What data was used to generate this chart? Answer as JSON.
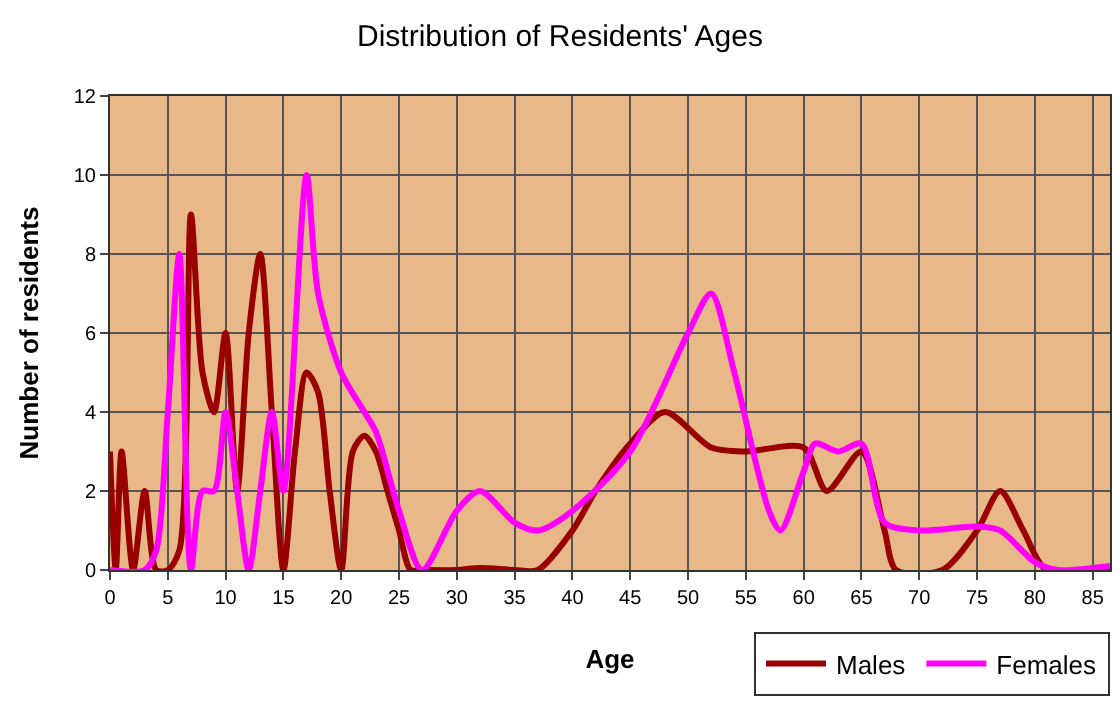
{
  "chart_data": {
    "type": "line",
    "title": "Distribution of Residents' Ages",
    "xlabel": "Age",
    "ylabel": "Number of residents",
    "xlim": [
      0,
      86.5
    ],
    "xticks": [
      0,
      5,
      10,
      15,
      20,
      25,
      30,
      35,
      40,
      45,
      50,
      55,
      60,
      65,
      70,
      75,
      80,
      85
    ],
    "ylim": [
      0,
      12
    ],
    "yticks": [
      0,
      2,
      4,
      6,
      8,
      10,
      12
    ],
    "grid": true,
    "legend": "bottom right",
    "marker": "none",
    "line_style": "solid",
    "series": [
      {
        "name": "Males",
        "color": "#990000",
        "x": [
          0,
          0.5,
          1,
          2,
          3,
          4,
          5,
          6,
          7,
          8,
          9,
          10,
          11,
          12,
          13,
          14,
          15,
          16,
          17,
          18,
          19,
          20,
          21,
          22,
          23,
          24,
          25,
          26,
          27,
          30,
          32,
          35,
          37,
          40,
          42,
          45,
          48,
          52,
          55,
          60,
          62,
          65,
          67,
          68,
          72,
          75,
          77,
          79,
          81,
          86.5
        ],
        "values": [
          3,
          0,
          3,
          0,
          2,
          0,
          0,
          0.5,
          9,
          5,
          4,
          6,
          2,
          6,
          8,
          4,
          0,
          3,
          5,
          4.5,
          2,
          0,
          3,
          3.4,
          3,
          2,
          1,
          0,
          0,
          0,
          0.05,
          0,
          0,
          1,
          2,
          3.2,
          4,
          3.1,
          3,
          3.1,
          2,
          3,
          1,
          0,
          0,
          1,
          2,
          1,
          0,
          0
        ]
      },
      {
        "name": "Females",
        "color": "#ff00ff",
        "x": [
          0,
          3,
          4,
          5,
          6,
          7,
          8,
          9,
          10,
          11,
          12,
          13,
          14,
          15,
          17,
          18,
          20,
          22,
          23,
          25,
          27,
          30,
          32,
          35,
          37,
          40,
          45,
          50,
          52,
          54,
          57,
          58,
          60,
          61,
          63,
          65,
          67,
          70,
          75,
          77,
          80,
          82,
          86.5
        ],
        "values": [
          0,
          0,
          0.5,
          4,
          8,
          0,
          2,
          2,
          4,
          2,
          0,
          2,
          4,
          2,
          10,
          7,
          5,
          4,
          3.5,
          1.5,
          0,
          1.5,
          2,
          1.2,
          1,
          1.5,
          3,
          6,
          7,
          5,
          1.5,
          1,
          2.5,
          3.2,
          3,
          3.2,
          1.2,
          1,
          1.1,
          1,
          0.2,
          0,
          0.1
        ]
      }
    ]
  }
}
